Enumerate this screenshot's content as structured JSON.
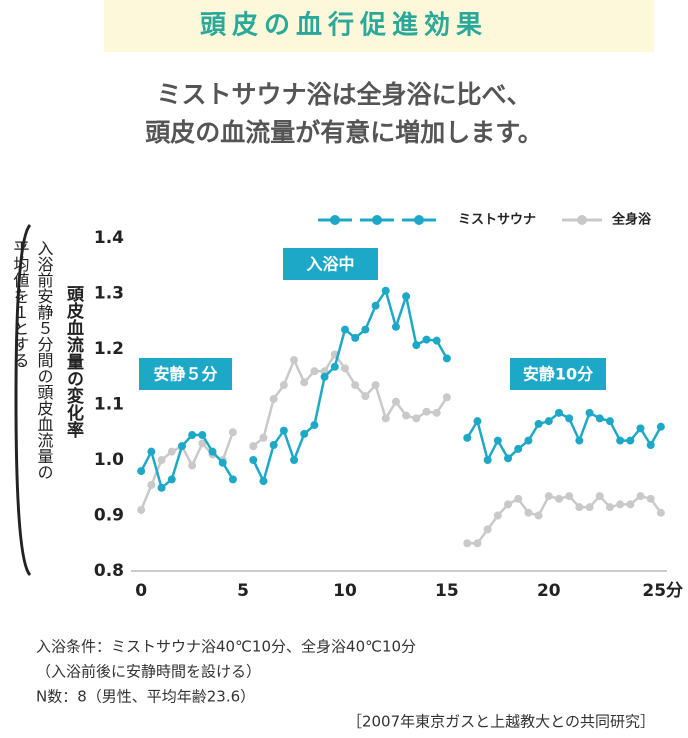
{
  "chart_data": {
    "type": "line",
    "title": "頭皮の血行促進効果",
    "subtitle": [
      "ミストサウナ浴は全身浴に比べ、",
      "頭皮の血流量が有意に増加します。"
    ],
    "ylabel": "頭皮血流量の変化率",
    "ynote": [
      "入浴前安静５分間の頭皮血流量の",
      "平均値を１とする"
    ],
    "annotations": [
      "安静５分",
      "入浴中",
      "安静10分"
    ],
    "x": [
      0,
      0.5,
      1,
      1.5,
      2,
      2.5,
      3,
      3.5,
      4,
      4.5,
      5,
      5.5,
      6,
      6.5,
      7,
      7.5,
      8,
      8.5,
      9,
      9.5,
      10,
      10.5,
      11,
      11.5,
      12,
      12.5,
      13,
      13.5,
      14,
      14.5,
      15,
      15.5,
      16,
      16.5,
      17,
      17.5,
      18,
      18.5,
      19,
      19.5,
      20,
      20.5,
      21,
      21.5,
      22,
      22.5,
      23,
      23.5,
      24,
      24.5,
      25,
      25.5
    ],
    "series": [
      {
        "name": "ミストサウナ",
        "color": "#1ea8c8",
        "values": [
          0.98,
          1.015,
          0.95,
          0.965,
          1.025,
          1.045,
          1.045,
          1.015,
          0.995,
          0.965,
          null,
          1.0,
          0.962,
          1.027,
          1.053,
          1.0,
          1.047,
          1.063,
          1.15,
          1.168,
          1.235,
          1.22,
          1.235,
          1.278,
          1.305,
          1.24,
          1.295,
          1.207,
          1.217,
          1.215,
          1.183,
          null,
          1.04,
          1.07,
          1.0,
          1.035,
          1.003,
          1.02,
          1.035,
          1.065,
          1.07,
          1.085,
          1.075,
          1.035,
          1.085,
          1.075,
          1.07,
          1.035,
          1.035,
          1.057,
          1.027,
          1.06
        ]
      },
      {
        "name": "全身浴",
        "color": "#c9c9c9",
        "values": [
          0.91,
          0.955,
          1.0,
          1.015,
          1.025,
          0.99,
          1.03,
          1.01,
          1.0,
          1.05,
          null,
          1.025,
          1.04,
          1.11,
          1.135,
          1.18,
          1.14,
          1.16,
          1.16,
          1.19,
          1.165,
          1.135,
          1.115,
          1.135,
          1.075,
          1.105,
          1.08,
          1.075,
          1.087,
          1.085,
          1.113,
          null,
          0.85,
          0.85,
          0.875,
          0.9,
          0.92,
          0.93,
          0.905,
          0.9,
          0.935,
          0.93,
          0.935,
          0.915,
          0.915,
          0.935,
          0.915,
          0.92,
          0.92,
          0.935,
          0.93,
          0.905
        ]
      }
    ],
    "xlim": [
      -0.5,
      25.8
    ],
    "xticks": [
      0,
      5,
      10,
      15,
      20,
      {
        "value": 25,
        "label": "25分"
      }
    ],
    "ylim": [
      0.8,
      1.4
    ],
    "yticks": [
      0.8,
      0.9,
      {
        "value": 1,
        "label": "1.0"
      },
      1.1,
      1.2,
      1.3,
      1.4
    ],
    "legend": "top-right",
    "grid": false,
    "footnotes": [
      "入浴条件：ミストサウナ浴40℃10分、全身浴40℃10分",
      "（入浴前後に安静時間を設ける）",
      "N数：8（男性、平均年齢23.6）"
    ],
    "source": "［2007年東京ガスと上越教大との共同研究］"
  }
}
